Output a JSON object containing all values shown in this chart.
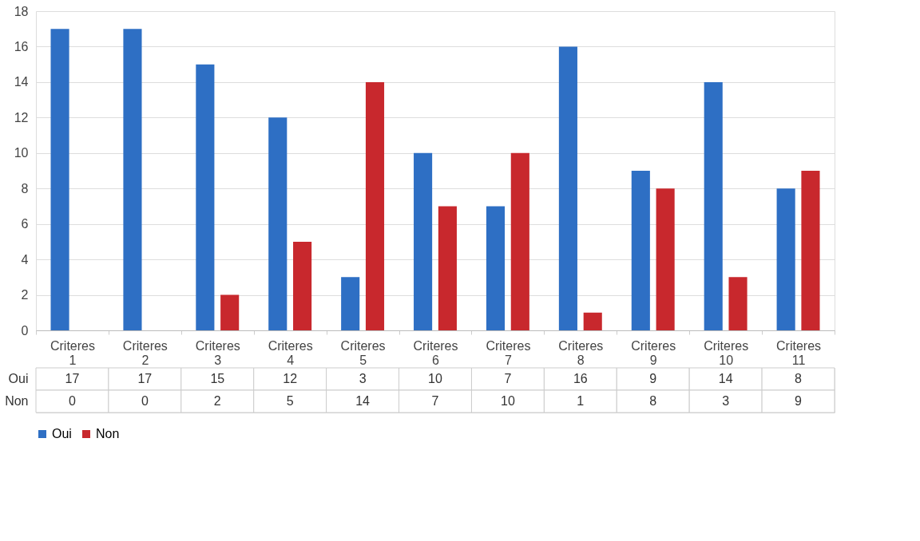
{
  "chart_data": {
    "type": "bar",
    "categories": [
      "Criteres 1",
      "Criteres 2",
      "Criteres 3",
      "Criteres 4",
      "Criteres 5",
      "Criteres 6",
      "Criteres 7",
      "Criteres 8",
      "Criteres 9",
      "Criteres 10",
      "Criteres 11"
    ],
    "series": [
      {
        "name": "Oui",
        "color": "#2e6fc4",
        "values": [
          17,
          17,
          15,
          12,
          3,
          10,
          7,
          16,
          9,
          14,
          8
        ]
      },
      {
        "name": "Non",
        "color": "#c8282d",
        "values": [
          0,
          0,
          2,
          5,
          14,
          7,
          10,
          1,
          8,
          3,
          9
        ]
      }
    ],
    "ylim": [
      0,
      18
    ],
    "yticks": [
      0,
      2,
      4,
      6,
      8,
      10,
      12,
      14,
      16,
      18
    ],
    "grid": "y",
    "legend": "bottom",
    "data_labels": true
  }
}
